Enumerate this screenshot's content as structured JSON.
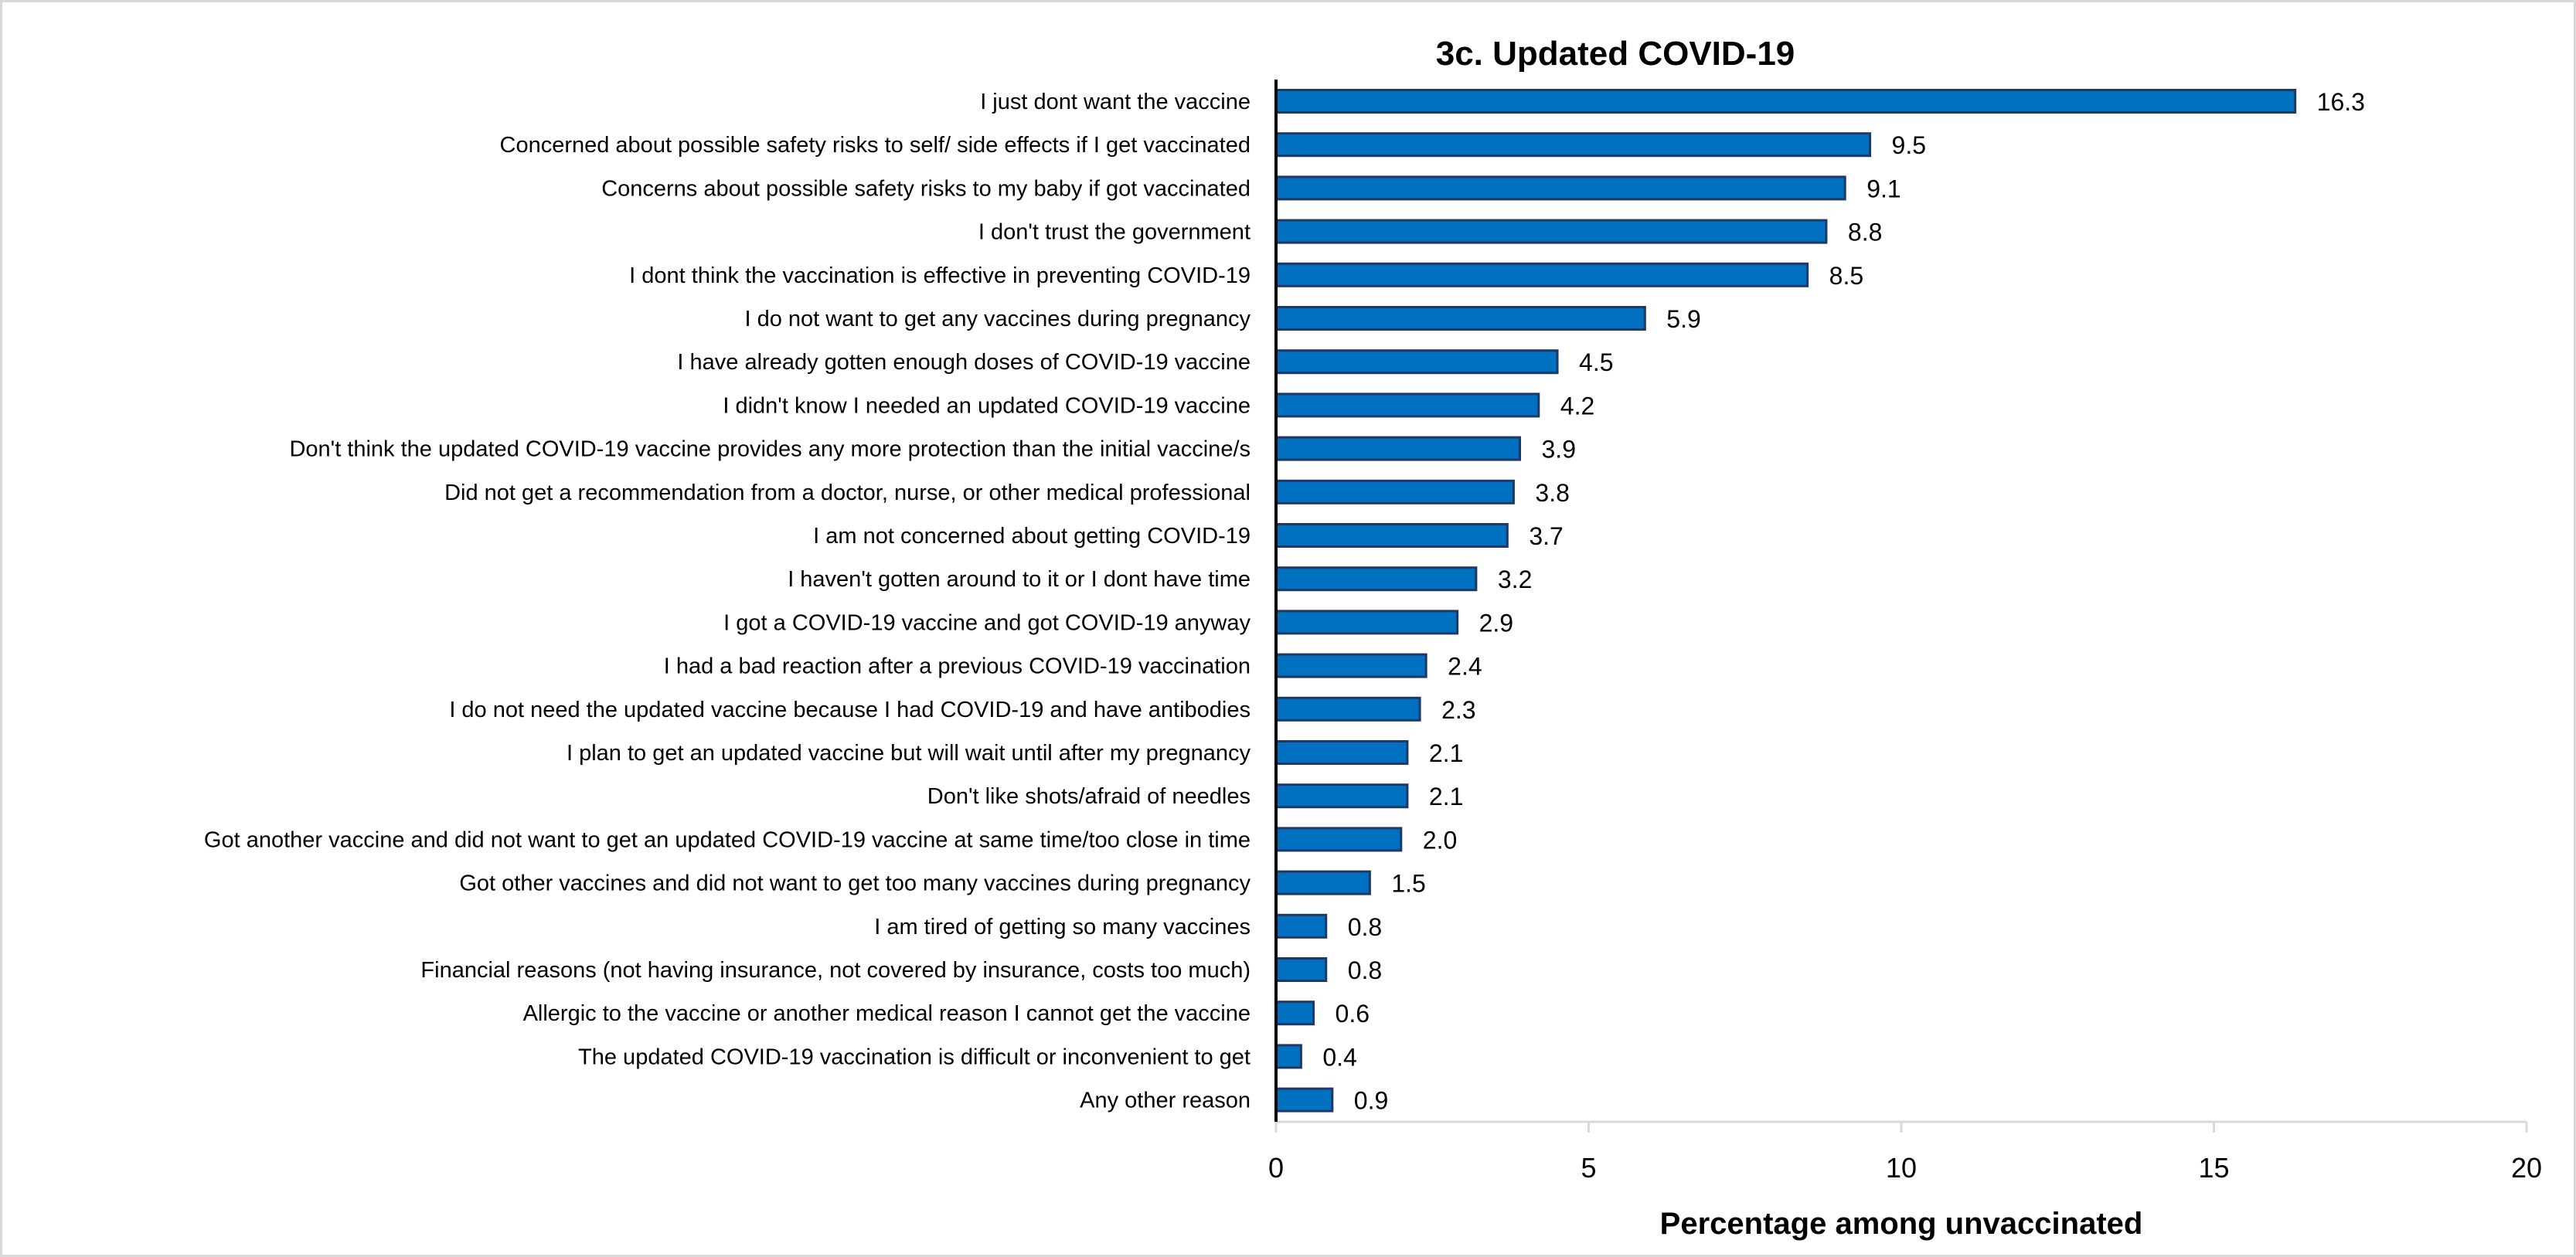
{
  "chart_data": {
    "type": "bar",
    "orientation": "horizontal",
    "title": "3c. Updated COVID-19",
    "xlabel": "Percentage among unvaccinated",
    "ylabel": "",
    "xlim": [
      0,
      20
    ],
    "xticks": [
      "0",
      "5",
      "10",
      "15",
      "20"
    ],
    "grid": false,
    "categories": [
      "I just dont want the vaccine",
      "Concerned about possible safety risks to self/ side effects if I get vaccinated",
      "Concerns about possible safety risks to my baby if got vaccinated",
      "I don't trust the government",
      "I dont think the vaccination is effective in preventing COVID-19",
      "I do not want to get any vaccines during pregnancy",
      "I have already gotten enough doses of COVID-19 vaccine",
      "I didn't know I needed an updated COVID-19 vaccine",
      "Don't think the updated COVID-19 vaccine provides any more protection than the initial vaccine/s",
      "Did not get a recommendation from a doctor, nurse, or other medical professional",
      "I am not concerned about getting COVID-19",
      "I haven't gotten around to it or I dont have time",
      "I got a COVID-19 vaccine and got COVID-19 anyway",
      "I had a bad reaction after a previous COVID-19 vaccination",
      "I do not need the updated vaccine because I had COVID-19 and have antibodies",
      "I plan to get an updated vaccine but will wait until after my pregnancy",
      "Don't like shots/afraid of needles",
      "Got another vaccine and did not want to get an updated COVID-19 vaccine at same time/too close in time",
      "Got other vaccines and did not want to get too many vaccines during pregnancy",
      "I am tired of getting so many vaccines",
      "Financial reasons (not having insurance, not covered by insurance, costs too much)",
      "Allergic to the vaccine or another medical reason I cannot get the vaccine",
      "The updated COVID-19 vaccination is difficult or inconvenient to get",
      "Any other reason"
    ],
    "values": [
      16.3,
      9.5,
      9.1,
      8.8,
      8.5,
      5.9,
      4.5,
      4.2,
      3.9,
      3.8,
      3.7,
      3.2,
      2.9,
      2.4,
      2.3,
      2.1,
      2.1,
      2.0,
      1.5,
      0.8,
      0.8,
      0.6,
      0.4,
      0.9
    ],
    "value_labels": [
      "16.3",
      "9.5",
      "9.1",
      "8.8",
      "8.5",
      "5.9",
      "4.5",
      "4.2",
      "3.9",
      "3.8",
      "3.7",
      "3.2",
      "2.9",
      "2.4",
      "2.3",
      "2.1",
      "2.1",
      "2.0",
      "1.5",
      "0.8",
      "0.8",
      "0.6",
      "0.4",
      "0.9"
    ],
    "colors": {
      "bar_fill": "#0070C0",
      "bar_stroke": "#1F3864",
      "axis": "#000000",
      "x_axis": "#d9d9d9",
      "frame": "#d9d9d9"
    }
  }
}
